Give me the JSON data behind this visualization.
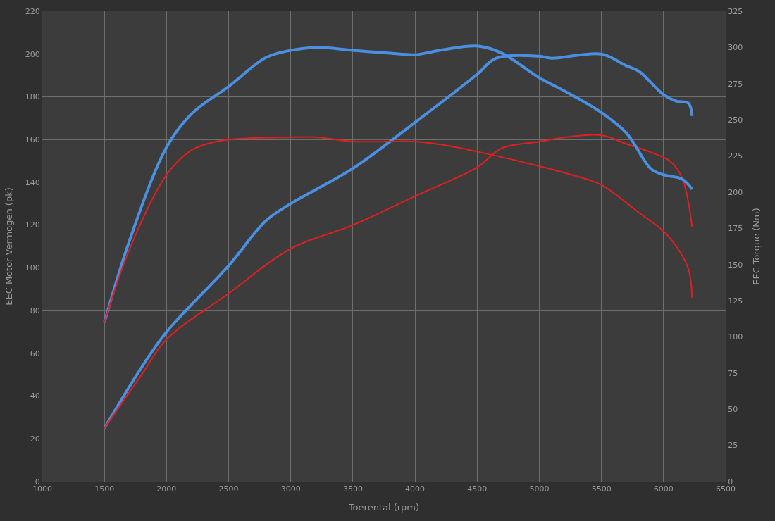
{
  "chart_data": {
    "type": "line",
    "xlabel": "Toerental (rpm)",
    "ylabel": "EEC Motor Vermogen (pk)",
    "y2label": "EEC Torque (Nm)",
    "xlim": [
      1000,
      6500
    ],
    "xticks": [
      1000,
      1500,
      2000,
      2500,
      3000,
      3500,
      4000,
      4500,
      5000,
      5500,
      6000,
      6500
    ],
    "ylim": [
      0,
      220
    ],
    "yticks": [
      0,
      20,
      40,
      60,
      80,
      100,
      120,
      140,
      160,
      180,
      200,
      220
    ],
    "y2lim": [
      0,
      325
    ],
    "y2ticks": [
      0,
      25,
      50,
      75,
      100,
      125,
      150,
      175,
      200,
      225,
      250,
      275,
      300,
      325
    ],
    "grid": true,
    "line_style": "solid",
    "series": [
      {
        "color": "#4a8fe0",
        "axis": "y2",
        "x": [
          1500,
          1700,
          2000,
          2200,
          2500,
          2800,
          3000,
          3200,
          3500,
          3800,
          4000,
          4200,
          4500,
          4700,
          5000,
          5200,
          5500,
          5700,
          5900,
          6000,
          6150,
          6230
        ],
        "values": [
          110,
          166,
          231,
          254,
          273,
          293,
          298,
          300,
          298,
          296,
          295,
          298,
          301,
          296,
          279,
          270,
          255,
          241,
          216,
          212,
          209,
          202
        ]
      },
      {
        "color": "#e02020",
        "axis": "y2",
        "x": [
          1500,
          1700,
          2000,
          2200,
          2400,
          2600,
          3000,
          3200,
          3500,
          4000,
          4200,
          4500,
          5000,
          5300,
          5500,
          5800,
          6000,
          6100,
          6200,
          6230
        ],
        "values": [
          110,
          160,
          212,
          229,
          235,
          237,
          238,
          238,
          235,
          235,
          233,
          228,
          218,
          211,
          205,
          186,
          173,
          163,
          147,
          127
        ]
      },
      {
        "color": "#4a8fe0",
        "x": [
          1500,
          1800,
          2000,
          2500,
          2800,
          3000,
          3500,
          4000,
          4500,
          4650,
          5000,
          5100,
          5500,
          5700,
          5800,
          6000,
          6100,
          6200,
          6230
        ],
        "values": [
          25,
          53.5,
          70,
          101,
          122,
          130,
          146.5,
          168,
          190.5,
          198,
          199,
          198,
          200,
          194.5,
          192,
          181,
          178,
          177,
          171
        ]
      },
      {
        "color": "#e02020",
        "x": [
          1500,
          1800,
          2000,
          2500,
          3000,
          3500,
          4000,
          4500,
          4700,
          5000,
          5200,
          5500,
          5700,
          5900,
          6050,
          6150,
          6230
        ],
        "values": [
          25,
          50,
          66.5,
          88,
          109,
          120,
          133.5,
          147,
          156,
          159,
          161,
          162,
          158,
          154,
          150,
          142,
          119
        ]
      }
    ]
  }
}
